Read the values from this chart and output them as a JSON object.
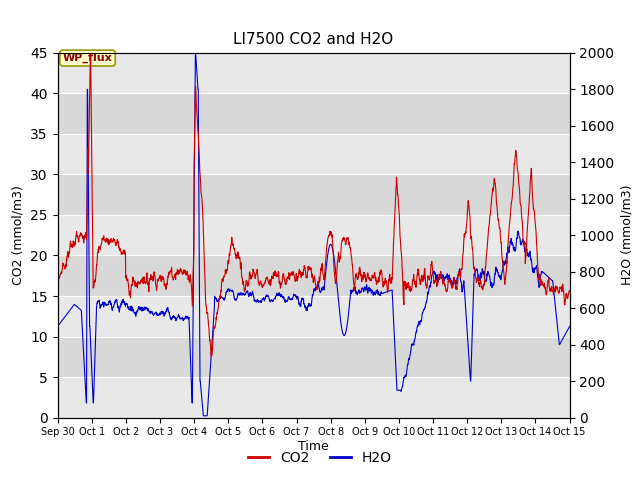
{
  "title": "LI7500 CO2 and H2O",
  "xlabel": "Time",
  "ylabel_left": "CO2 (mmol/m3)",
  "ylabel_right": "H2O (mmol/m3)",
  "xlim": [
    0,
    15
  ],
  "ylim_left": [
    0,
    45
  ],
  "ylim_right": [
    0,
    2000
  ],
  "yticks_left": [
    0,
    5,
    10,
    15,
    20,
    25,
    30,
    35,
    40,
    45
  ],
  "yticks_right": [
    0,
    200,
    400,
    600,
    800,
    1000,
    1200,
    1400,
    1600,
    1800,
    2000
  ],
  "xtick_labels": [
    "Sep 30",
    "Oct 1",
    "Oct 2",
    "Oct 3",
    "Oct 4",
    "Oct 5",
    "Oct 6",
    "Oct 7",
    "Oct 8",
    "Oct 9",
    "Oct 10",
    "Oct 11",
    "Oct 12",
    "Oct 13",
    "Oct 14",
    "Oct 15"
  ],
  "xtick_positions": [
    0,
    1,
    2,
    3,
    4,
    5,
    6,
    7,
    8,
    9,
    10,
    11,
    12,
    13,
    14,
    15
  ],
  "annotation_text": "WP_flux",
  "co2_color": "#cc0000",
  "h2o_color": "#0000cc",
  "band_colors": [
    "#e8e8e8",
    "#d8d8d8"
  ],
  "grid_color": "#ffffff",
  "legend_co2": "CO2",
  "legend_h2o": "H2O",
  "h2o_scale": 44.444,
  "band_edges": [
    0,
    5,
    10,
    15,
    20,
    25,
    30,
    35,
    40,
    45
  ]
}
